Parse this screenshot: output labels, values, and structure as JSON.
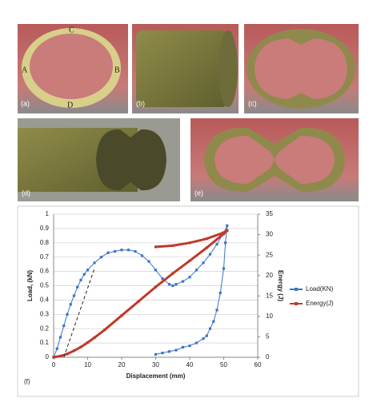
{
  "panels": [
    {
      "label": "(a)"
    },
    {
      "label": "(b)"
    },
    {
      "label": "(c)"
    },
    {
      "label": "(d)"
    },
    {
      "label": "(e)"
    }
  ],
  "points": [
    "A",
    "B",
    "C",
    "D"
  ],
  "chart_data": {
    "type": "line",
    "panel_label": "(f)",
    "x_label": "Displacement (mm)",
    "y_label": "Load, (kN)",
    "y2_label": "Energy (J)",
    "xlim": [
      0,
      60
    ],
    "xticks": [
      0,
      10,
      20,
      30,
      40,
      50,
      60
    ],
    "ylim": [
      0,
      1
    ],
    "yticks": [
      0,
      0.1,
      0.2,
      0.3,
      0.4,
      0.5,
      0.6,
      0.7,
      0.8,
      0.9,
      1
    ],
    "y2lim": [
      0,
      35
    ],
    "y2ticks": [
      0,
      5,
      10,
      15,
      20,
      25,
      30,
      35
    ],
    "grid": true,
    "legend": "right",
    "series": [
      {
        "name": "Load(KN)",
        "color": "#3b74c9",
        "x": [
          0,
          1,
          2,
          3,
          4,
          5,
          6,
          7,
          8,
          9,
          10,
          12,
          14,
          16,
          18,
          20,
          22,
          24,
          26,
          28,
          30,
          32,
          34,
          35,
          36,
          38,
          40,
          42,
          44,
          46,
          48,
          50,
          51,
          50.5,
          50,
          49,
          48,
          47,
          46,
          45,
          44,
          42,
          40,
          38,
          36,
          34,
          32,
          30
        ],
        "values": [
          0,
          0.06,
          0.14,
          0.22,
          0.3,
          0.37,
          0.43,
          0.49,
          0.54,
          0.58,
          0.61,
          0.66,
          0.7,
          0.73,
          0.74,
          0.75,
          0.75,
          0.74,
          0.71,
          0.67,
          0.61,
          0.55,
          0.51,
          0.5,
          0.51,
          0.53,
          0.56,
          0.61,
          0.66,
          0.72,
          0.79,
          0.87,
          0.92,
          0.8,
          0.62,
          0.45,
          0.33,
          0.25,
          0.2,
          0.15,
          0.13,
          0.1,
          0.08,
          0.07,
          0.05,
          0.04,
          0.03,
          0.02
        ]
      },
      {
        "name": "Energy(J)",
        "color": "#c0392b",
        "axis": "y2",
        "x": [
          0,
          2,
          4,
          6,
          8,
          10,
          12,
          15,
          20,
          25,
          30,
          35,
          40,
          45,
          50,
          51,
          null,
          30,
          35,
          40,
          45,
          50,
          51
        ],
        "values": [
          0,
          0.3,
          0.8,
          1.6,
          2.5,
          3.6,
          4.8,
          6.7,
          10.2,
          13.7,
          17.2,
          20.5,
          23.6,
          26.8,
          30.2,
          31,
          null,
          27,
          27.3,
          28,
          29,
          30.5,
          31
        ]
      }
    ],
    "dashed_line": {
      "x": [
        3,
        12
      ],
      "values": [
        0,
        0.62
      ]
    }
  }
}
